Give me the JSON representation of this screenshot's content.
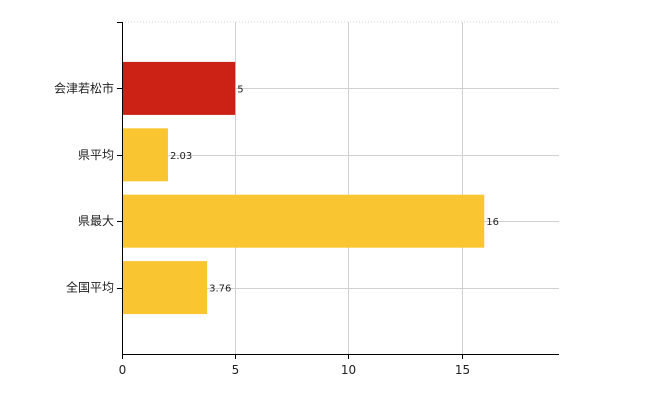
{
  "chart_data": {
    "type": "bar",
    "orientation": "horizontal",
    "categories": [
      "会津若松市",
      "県平均",
      "県最大",
      "全国平均"
    ],
    "values": [
      5,
      2.03,
      16,
      3.76
    ],
    "value_labels": [
      "5",
      "2.03",
      "16",
      "3.76"
    ],
    "xlim": [
      0,
      19.3
    ],
    "xticks": [
      0,
      5,
      10,
      15
    ],
    "xtick_labels": [
      "0",
      "5",
      "10",
      "15"
    ],
    "grid": true,
    "legend": "none",
    "colors": {
      "highlight": "#cc2215",
      "default": "#f9c632",
      "grid": "#d0d0d0",
      "axis": "#000000"
    },
    "highlight_category": "会津若松市"
  }
}
